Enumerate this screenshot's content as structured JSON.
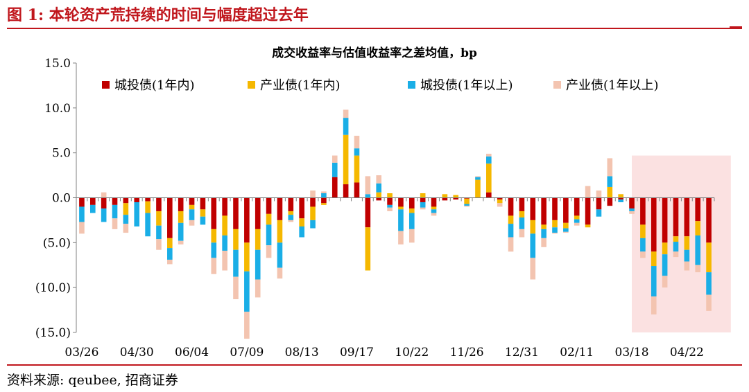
{
  "figure": {
    "title": "图 1:  本轮资产荒持续的时间与幅度超过去年",
    "source": "资料来源:  qeubee,  招商证券"
  },
  "colors": {
    "red": "#c0161c",
    "series": [
      "#c00000",
      "#f5b800",
      "#1aaee6",
      "#f3c4b0"
    ],
    "highlight": "#fbe1e1",
    "axis": "#808080"
  },
  "chart_data": {
    "type": "bar",
    "stacked": true,
    "title": "成交收益率与估值收益率之差均值，bp",
    "ylim": [
      -15,
      15
    ],
    "yticks": [
      15,
      10,
      5,
      0,
      -5,
      -10,
      -15
    ],
    "ytick_labels": [
      "15.0",
      "10.0",
      "5.0",
      "0.0",
      "(5.0)",
      "(10.0)",
      "(15.0)"
    ],
    "xtick_labels": [
      "03/26",
      "04/30",
      "06/04",
      "07/09",
      "08/13",
      "09/17",
      "10/22",
      "11/26",
      "12/31",
      "02/11",
      "03/18",
      "04/22"
    ],
    "xtick_positions": [
      0,
      5,
      10,
      15,
      20,
      25,
      30,
      35,
      40,
      45,
      50,
      55
    ],
    "legend_position": "top",
    "highlight_range": [
      50.5,
      59.5
    ],
    "series": [
      {
        "name": "城投债(1年内)",
        "values": [
          -1.0,
          -0.8,
          -1.2,
          -0.8,
          -0.6,
          -0.5,
          -0.4,
          -1.5,
          -4.5,
          -1.5,
          -0.8,
          -1.3,
          -3.5,
          -2.0,
          -3.5,
          -5.0,
          -3.5,
          -1.8,
          -2.5,
          -1.5,
          -2.3,
          -1.0,
          -0.6,
          2.3,
          1.5,
          1.7,
          -3.3,
          -0.3,
          -0.8,
          -1.0,
          -1.2,
          -0.5,
          -1.0,
          -0.3,
          -0.2,
          -0.1,
          0.0,
          0.6,
          -0.2,
          -2.0,
          -1.5,
          -2.5,
          -3.0,
          -2.5,
          -2.8,
          -2.0,
          -3.0,
          -1.3,
          -0.9,
          -0.2,
          -1.2,
          -3.0,
          -6.0,
          -5.0,
          -4.3,
          -4.3,
          -2.6,
          -5.0
        ]
      },
      {
        "name": "产业债(1年内)",
        "values": [
          0.0,
          0.0,
          0.0,
          0.0,
          -1.3,
          0.0,
          -1.3,
          -1.6,
          -1.1,
          -1.3,
          -0.5,
          -0.8,
          -1.5,
          -2.2,
          -2.3,
          -3.2,
          -2.3,
          -1.2,
          -2.5,
          -0.4,
          -0.9,
          -1.5,
          -0.2,
          0.0,
          5.5,
          3.0,
          -4.8,
          0.6,
          0.5,
          -0.3,
          -0.5,
          0.5,
          -0.3,
          0.4,
          0.3,
          -0.6,
          2.0,
          3.2,
          -0.4,
          -0.9,
          -0.7,
          -1.5,
          -0.5,
          -0.8,
          -0.6,
          -0.4,
          -0.3,
          0.0,
          1.2,
          0.4,
          0.0,
          -1.5,
          -1.6,
          -1.3,
          -0.6,
          -1.5,
          -1.6,
          -3.3
        ]
      },
      {
        "name": "城投债(1年以上)",
        "values": [
          -1.7,
          -0.9,
          -1.5,
          -1.5,
          -1.0,
          -2.7,
          -2.6,
          -1.5,
          -1.3,
          -2.0,
          -1.2,
          -0.9,
          -1.7,
          -1.7,
          -3.0,
          -4.5,
          -3.3,
          -2.3,
          -2.8,
          -0.6,
          -1.2,
          -0.9,
          0.5,
          1.6,
          1.9,
          0.8,
          0.4,
          1.0,
          -0.3,
          -2.4,
          -1.8,
          -0.6,
          -0.4,
          0.0,
          0.0,
          -0.2,
          0.3,
          0.8,
          0.0,
          -1.5,
          -1.3,
          -2.7,
          -1.0,
          -0.6,
          -0.4,
          -0.4,
          0.0,
          -0.8,
          1.2,
          -0.3,
          -0.3,
          -1.5,
          -3.4,
          -2.4,
          -1.1,
          -1.3,
          -3.3,
          -2.5
        ]
      },
      {
        "name": "产业债(1年以上)",
        "values": [
          -1.3,
          0.0,
          0.6,
          -1.2,
          -1.0,
          0.0,
          0.0,
          -1.2,
          -0.5,
          -0.4,
          -0.6,
          0.0,
          -1.8,
          -2.2,
          -2.5,
          -3.0,
          -2.0,
          -1.4,
          -1.2,
          -0.2,
          0.0,
          0.8,
          0.2,
          0.8,
          0.9,
          1.4,
          2.0,
          0.9,
          -0.4,
          -1.5,
          -1.5,
          -0.2,
          -0.3,
          0.0,
          0.0,
          -0.1,
          0.1,
          0.3,
          -0.4,
          -1.6,
          -0.9,
          -2.4,
          -1.0,
          -0.1,
          -0.1,
          -0.3,
          1.3,
          0.8,
          2.0,
          0.0,
          -0.3,
          -0.7,
          -2.0,
          -1.3,
          -0.6,
          -1.0,
          -0.8,
          -1.8
        ]
      }
    ]
  }
}
